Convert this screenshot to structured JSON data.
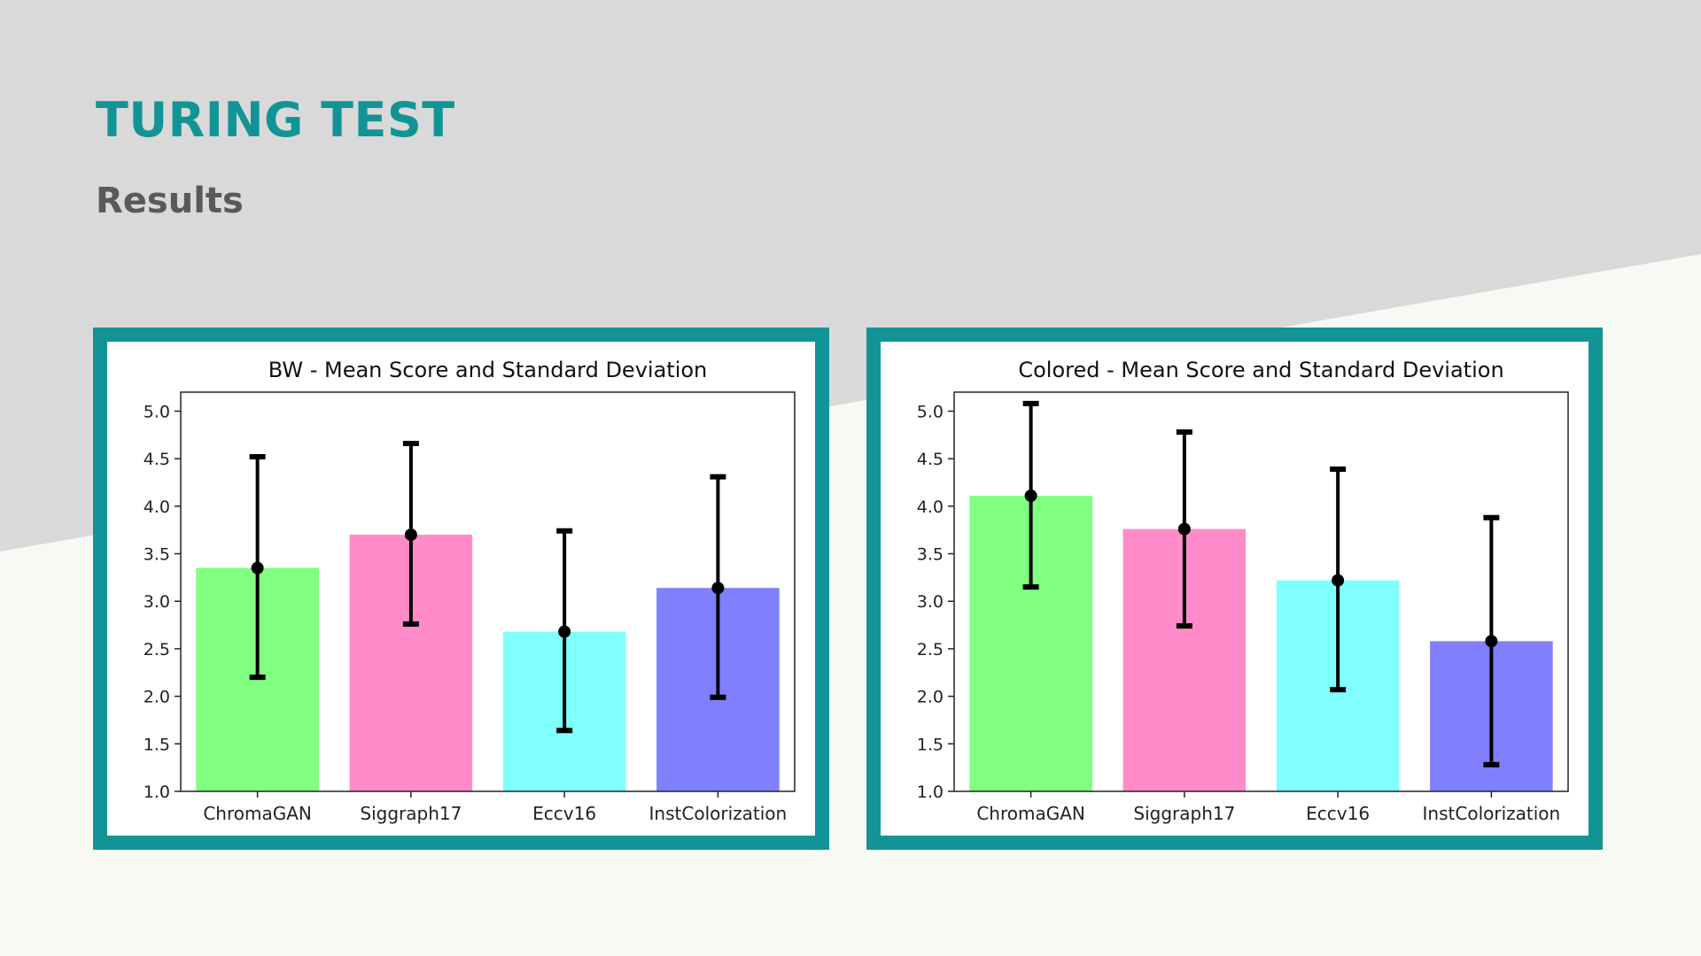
{
  "slide": {
    "title": "TURING TEST",
    "subtitle": "Results",
    "accent_color": "#129496",
    "subtitle_color": "#595959",
    "background_upper": "#d9d9d9",
    "background_lower": "#f8f9f4"
  },
  "chart_data": [
    {
      "type": "bar",
      "title": "BW - Mean Score and Standard Deviation",
      "xlabel": "",
      "ylabel": "",
      "categories": [
        "ChromaGAN",
        "Siggraph17",
        "Eccv16",
        "InstColorization"
      ],
      "values": [
        3.35,
        3.7,
        2.68,
        3.14
      ],
      "error_low": [
        2.2,
        2.76,
        1.64,
        1.99
      ],
      "error_high": [
        4.52,
        4.66,
        3.74,
        4.31
      ],
      "colors": [
        "#80ff80",
        "#ff8cc8",
        "#80ffff",
        "#8080ff"
      ],
      "ylim": [
        1.0,
        5.2
      ],
      "yticks": [
        "1.0",
        "1.5",
        "2.0",
        "2.5",
        "3.0",
        "3.5",
        "4.0",
        "4.5",
        "5.0"
      ],
      "grid": false
    },
    {
      "type": "bar",
      "title": "Colored - Mean Score and Standard Deviation",
      "xlabel": "",
      "ylabel": "",
      "categories": [
        "ChromaGAN",
        "Siggraph17",
        "Eccv16",
        "InstColorization"
      ],
      "values": [
        4.11,
        3.76,
        3.22,
        2.58
      ],
      "error_low": [
        3.15,
        2.74,
        2.07,
        1.28
      ],
      "error_high": [
        5.08,
        4.78,
        4.39,
        3.88
      ],
      "colors": [
        "#80ff80",
        "#ff8cc8",
        "#80ffff",
        "#8080ff"
      ],
      "ylim": [
        1.0,
        5.2
      ],
      "yticks": [
        "1.0",
        "1.5",
        "2.0",
        "2.5",
        "3.0",
        "3.5",
        "4.0",
        "4.5",
        "5.0"
      ],
      "grid": false
    }
  ]
}
